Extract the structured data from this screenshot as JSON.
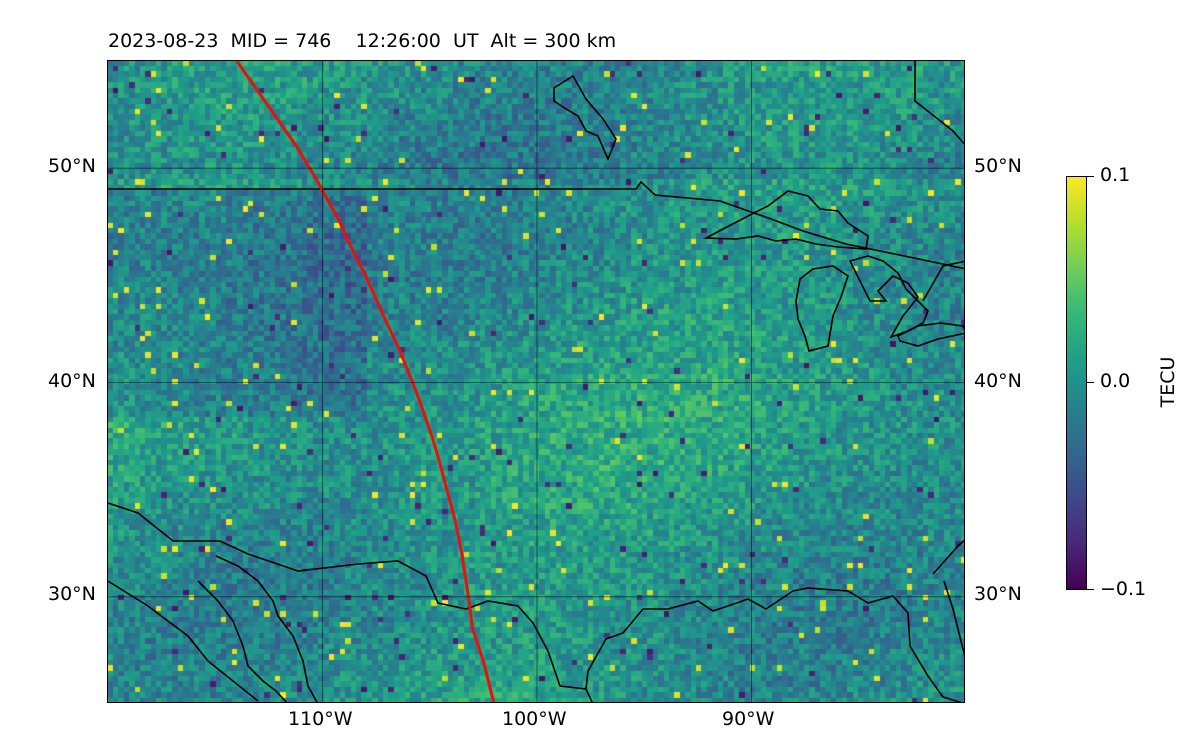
{
  "title": "2023-08-23  MID = 746    12:26:00  UT  Alt = 300 km",
  "map": {
    "type": "heatmap",
    "extent": {
      "lon_min": -120,
      "lon_max": -80,
      "lat_min": 25,
      "lat_max": 55
    },
    "lat_ticks": [
      "50°N",
      "40°N",
      "30°N"
    ],
    "lon_ticks": [
      "110°W",
      "100°W",
      "90°W"
    ],
    "gridlines": true,
    "track_color": "#e8110a",
    "track_points": [
      [
        -114,
        55
      ],
      [
        -111.2,
        51
      ],
      [
        -110.3,
        49.5
      ],
      [
        -109.2,
        47.5
      ],
      [
        -108.8,
        46.6
      ],
      [
        -108,
        45
      ],
      [
        -107.1,
        43
      ],
      [
        -106.4,
        41.5
      ],
      [
        -105.6,
        39.5
      ],
      [
        -104.9,
        37.5
      ],
      [
        -104.6,
        36.5
      ],
      [
        -104.2,
        35
      ],
      [
        -103.8,
        33.5
      ],
      [
        -103.5,
        32
      ],
      [
        -103.2,
        30
      ],
      [
        -103,
        28.5
      ],
      [
        -102.5,
        27
      ],
      [
        -102,
        25
      ]
    ],
    "colormap": "viridis"
  },
  "chart_data": {
    "type": "heatmap",
    "title": "2023-08-23  MID = 746    12:26:00  UT  Alt = 300 km",
    "xlim": [
      -120,
      -80
    ],
    "ylim": [
      25,
      55
    ],
    "x_ticks": [
      "110°W",
      "100°W",
      "90°W"
    ],
    "y_ticks": [
      "50°N",
      "40°N",
      "30°N"
    ],
    "color_range": [
      -0.1,
      0.1
    ],
    "colorbar_label": "TECU",
    "grid": true
  },
  "colorbar": {
    "label": "TECU",
    "ticks": [
      "0.1",
      "0.0",
      "−0.1"
    ],
    "vmin": -0.1,
    "vmax": 0.1
  }
}
